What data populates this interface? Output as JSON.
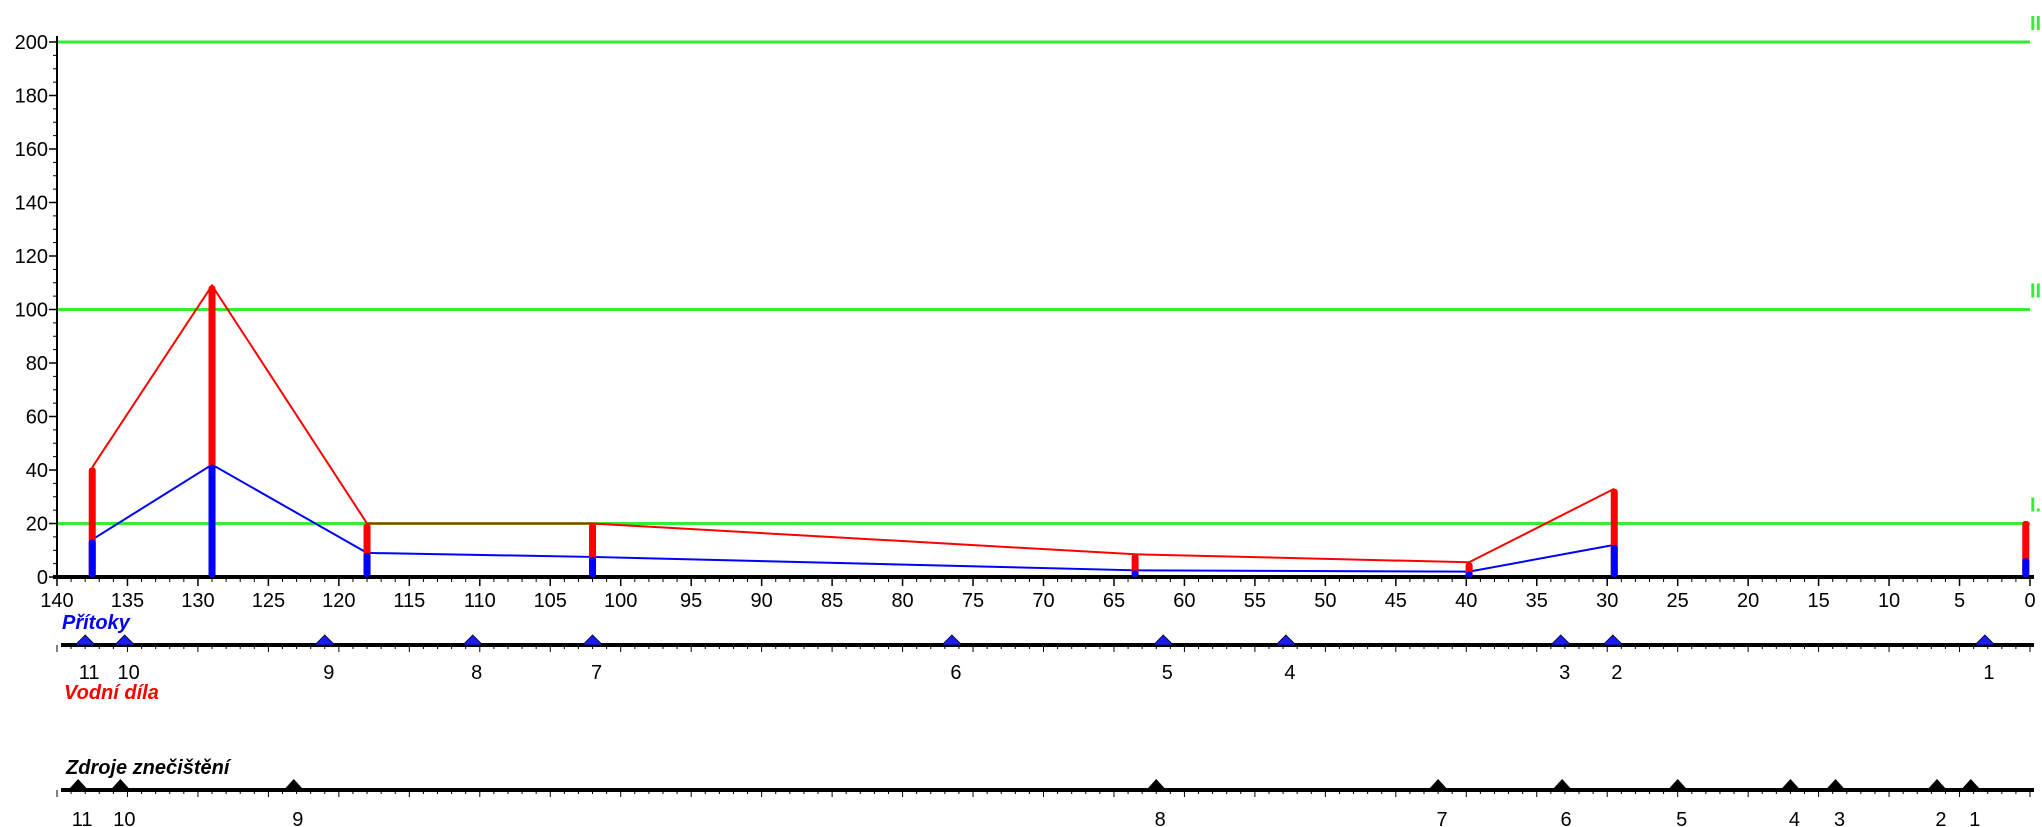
{
  "chart_data": {
    "type": "line",
    "x_axis": {
      "reversed": true,
      "min": 0,
      "max": 140,
      "ticks": [
        140,
        135,
        130,
        125,
        120,
        115,
        110,
        105,
        100,
        95,
        90,
        85,
        80,
        75,
        70,
        65,
        60,
        55,
        50,
        45,
        40,
        35,
        30,
        25,
        20,
        15,
        10,
        5,
        0
      ]
    },
    "y_axis": {
      "min": 0,
      "max": 200,
      "ticks": [
        0,
        20,
        40,
        60,
        80,
        100,
        120,
        140,
        160,
        180,
        200
      ]
    },
    "threshold_lines": [
      {
        "value": 20,
        "label": "I.",
        "color": "#33ee33"
      },
      {
        "value": 100,
        "label": "II",
        "color": "#33ee33"
      },
      {
        "value": 200,
        "label": "II",
        "color": "#33ee33"
      }
    ],
    "series": [
      {
        "color": "#ff0000",
        "x": [
          137.5,
          129,
          118,
          102,
          63.5,
          39.8,
          29.5,
          0.3
        ],
        "y": [
          41,
          109,
          20,
          20,
          8.5,
          5.5,
          33,
          21
        ]
      },
      {
        "color": "#0000ff",
        "x": [
          137.5,
          129,
          118,
          102,
          63.5,
          39.8,
          29.5,
          0.3
        ],
        "y": [
          14,
          42,
          9,
          7.5,
          2.5,
          2,
          12,
          7
        ]
      }
    ],
    "series_connect": [
      {
        "color": "#ff0000",
        "points": 7
      },
      {
        "color": "#0000ff",
        "points": 7
      }
    ]
  },
  "tracks": {
    "pritoky": {
      "title": "Přítoky",
      "title_color": "#0000ff",
      "marker_color": "#1a1aff",
      "markers": [
        {
          "x": 138,
          "label": "11"
        },
        {
          "x": 135.2,
          "label": "10"
        },
        {
          "x": 121,
          "label": "9"
        },
        {
          "x": 110.5,
          "label": "8"
        },
        {
          "x": 102,
          "label": "7"
        },
        {
          "x": 76.5,
          "label": "6"
        },
        {
          "x": 61.5,
          "label": "5"
        },
        {
          "x": 52.8,
          "label": "4"
        },
        {
          "x": 33.3,
          "label": "3"
        },
        {
          "x": 29.6,
          "label": "2"
        },
        {
          "x": 3.2,
          "label": "1"
        }
      ]
    },
    "vodni_dila": {
      "title": "Vodní díla",
      "title_color": "#ff0000"
    },
    "zdroje": {
      "title": "Zdroje znečištění",
      "title_color": "#000000",
      "marker_color": "#000000",
      "markers": [
        {
          "x": 138.5,
          "label": "11"
        },
        {
          "x": 135.5,
          "label": "10"
        },
        {
          "x": 123.2,
          "label": "9"
        },
        {
          "x": 62,
          "label": "8"
        },
        {
          "x": 42,
          "label": "7"
        },
        {
          "x": 33.2,
          "label": "6"
        },
        {
          "x": 25,
          "label": "5"
        },
        {
          "x": 17,
          "label": "4"
        },
        {
          "x": 13.8,
          "label": "3"
        },
        {
          "x": 6.6,
          "label": "2"
        },
        {
          "x": 4.2,
          "label": "1"
        }
      ]
    }
  }
}
